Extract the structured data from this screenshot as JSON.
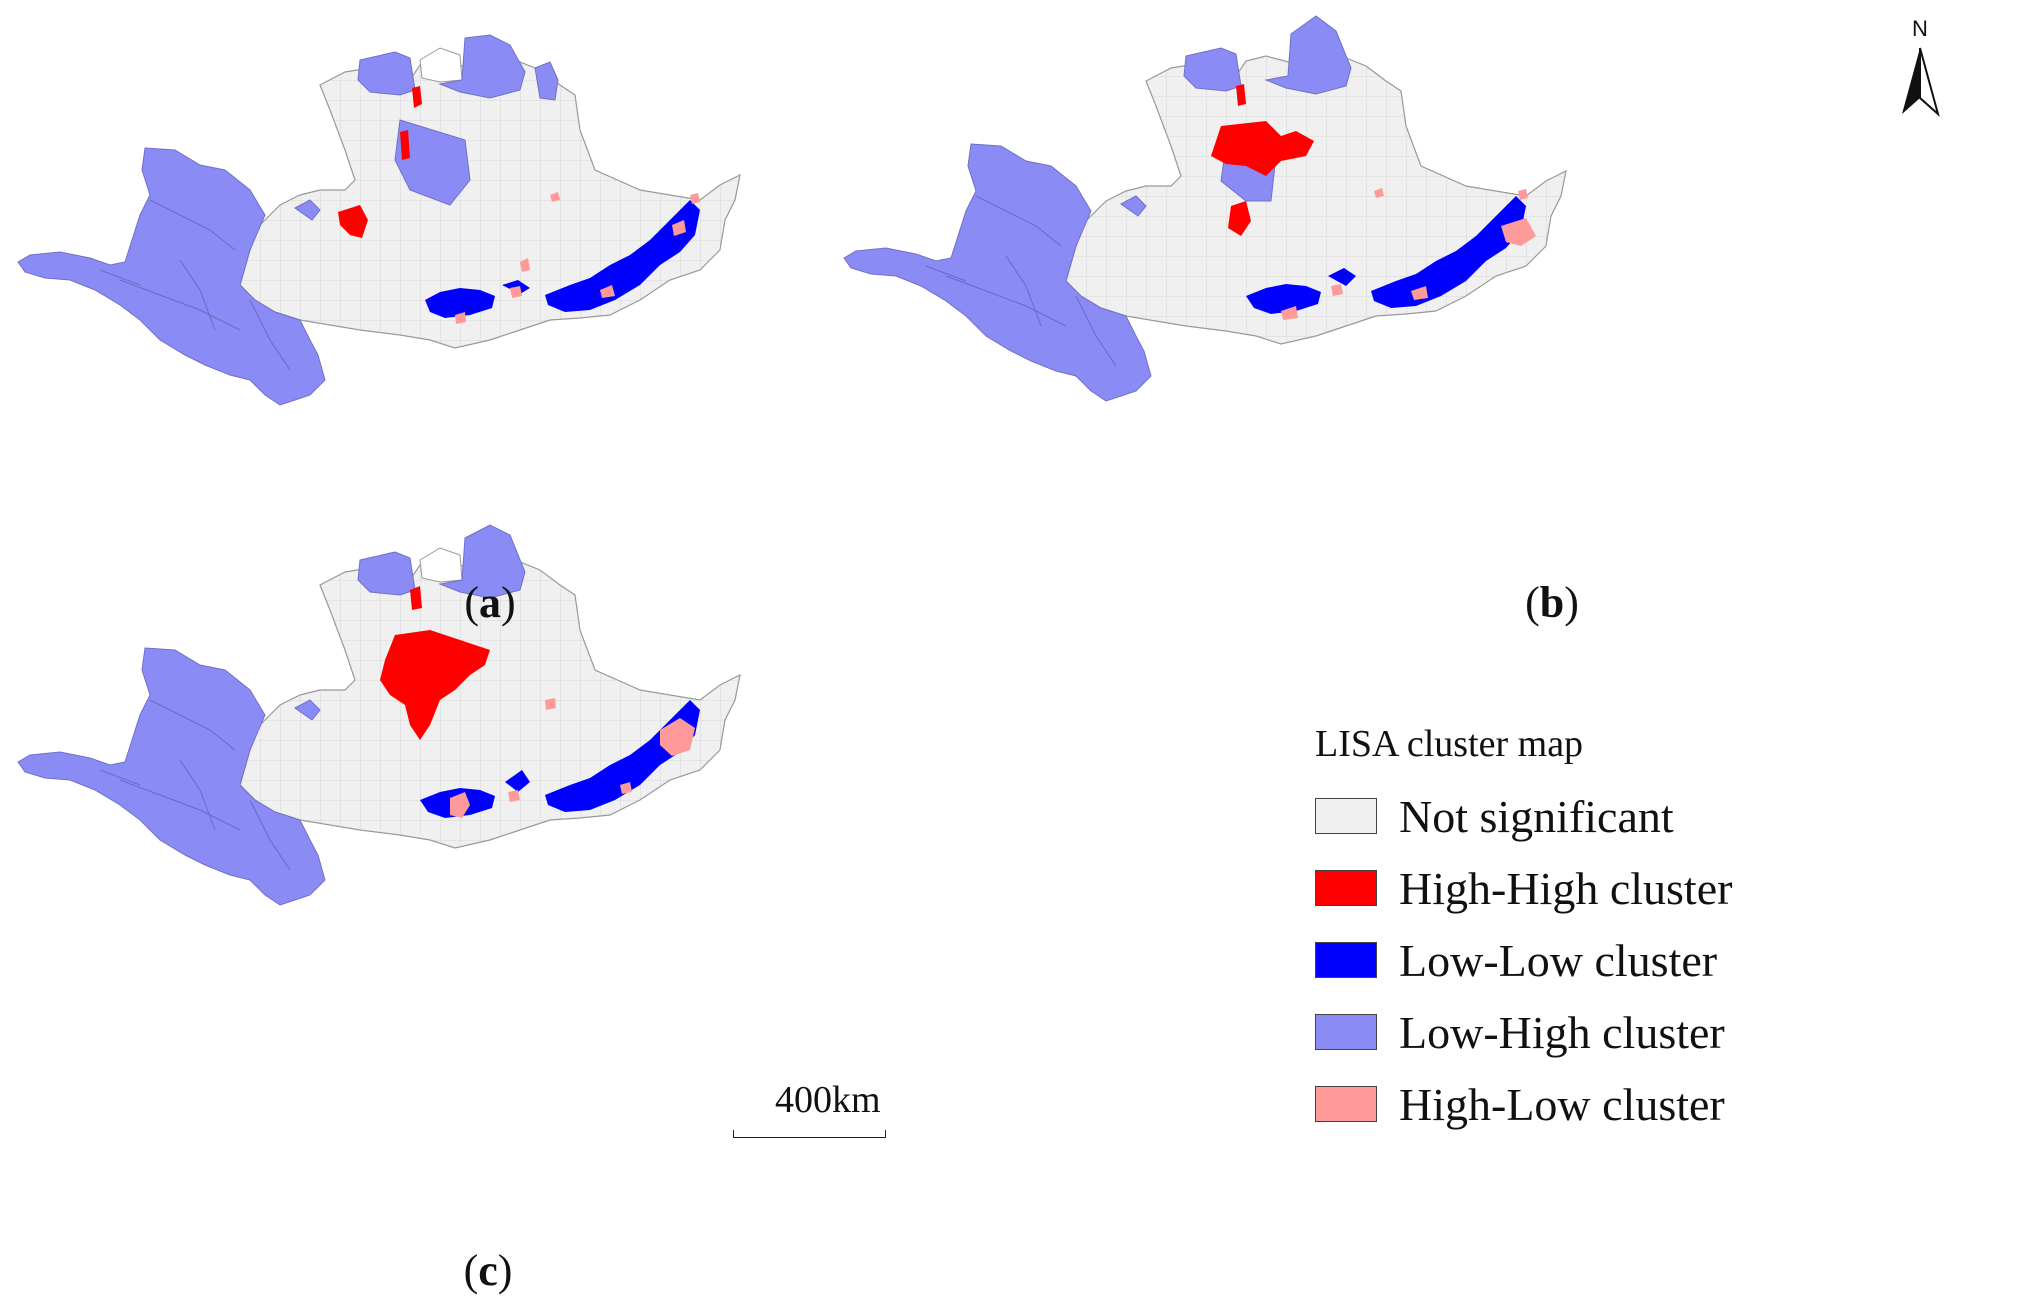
{
  "panels": [
    {
      "label": "a",
      "caption_open": "(",
      "caption_close": ")"
    },
    {
      "label": "b",
      "caption_open": "(",
      "caption_close": ")"
    },
    {
      "label": "c",
      "caption_open": "(",
      "caption_close": ")"
    }
  ],
  "legend": {
    "title": "LISA cluster map",
    "items": [
      {
        "label": "Not significant",
        "color": "#f0f0f0"
      },
      {
        "label": "High-High cluster",
        "color": "#ff0000"
      },
      {
        "label": "Low-Low cluster",
        "color": "#0000ff"
      },
      {
        "label": "Low-High cluster",
        "color": "#8b8bf5"
      },
      {
        "label": "High-Low cluster",
        "color": "#ff9a9a"
      }
    ]
  },
  "scale_bar": {
    "label": "400km"
  },
  "north_arrow": {
    "label": "N"
  },
  "colors": {
    "border": "#9a9a9a",
    "not_significant": "#f0f0f0",
    "high_high": "#ff0000",
    "low_low": "#0000ff",
    "low_high": "#8b8bf5",
    "high_low": "#ff9a9a"
  }
}
